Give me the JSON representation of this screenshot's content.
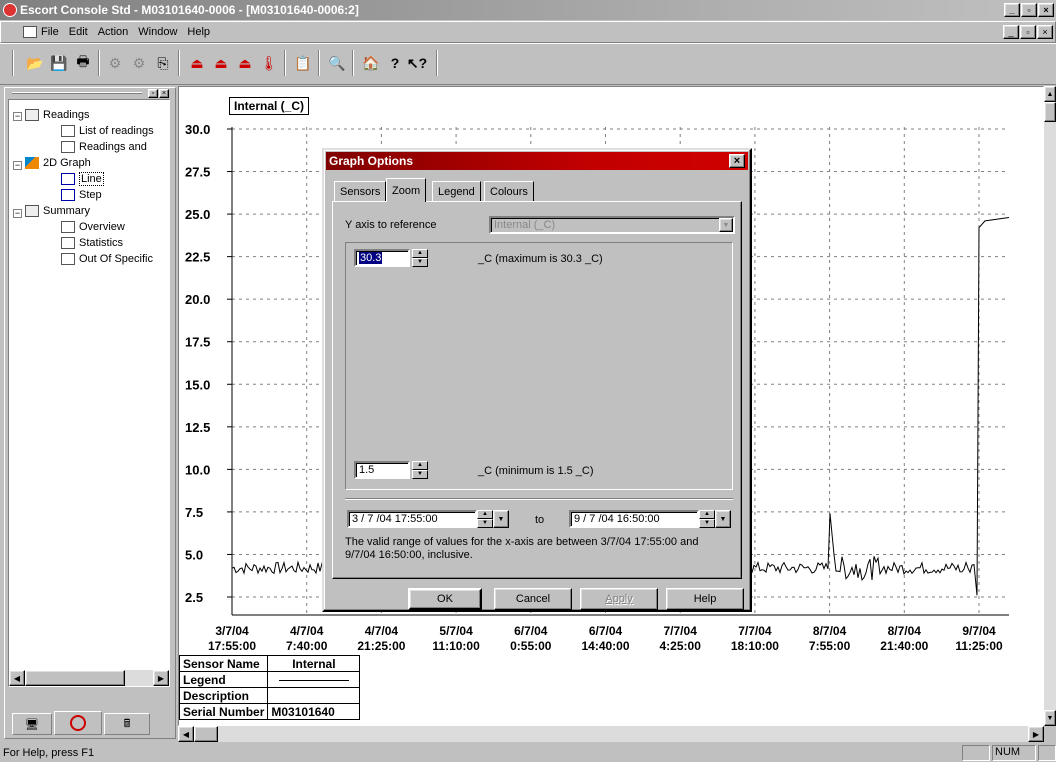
{
  "window": {
    "title": "Escort Console Std - M03101640-0006 - [M03101640-0006:2]"
  },
  "menu": {
    "items": [
      "File",
      "Edit",
      "Action",
      "Window",
      "Help"
    ]
  },
  "tree": {
    "items": [
      {
        "label": "Readings",
        "level": 0
      },
      {
        "label": "List of readings",
        "level": 1
      },
      {
        "label": "Readings and",
        "level": 1
      },
      {
        "label": "2D Graph",
        "level": 0
      },
      {
        "label": "Line",
        "level": 1
      },
      {
        "label": "Step",
        "level": 1
      },
      {
        "label": "Summary",
        "level": 0
      },
      {
        "label": "Overview",
        "level": 1
      },
      {
        "label": "Statistics",
        "level": 1
      },
      {
        "label": "Out Of Specific",
        "level": 1
      }
    ],
    "tabs": [
      "",
      "",
      ""
    ]
  },
  "graph": {
    "series_label": "Internal (_C)"
  },
  "chart_data": {
    "type": "line",
    "title": "Internal (_C)",
    "ylim": [
      1.5,
      30.3
    ],
    "y_ticks": [
      "30.0",
      "27.5",
      "25.0",
      "22.5",
      "20.0",
      "17.5",
      "15.0",
      "12.5",
      "10.0",
      "7.5",
      "5.0",
      "2.5"
    ],
    "x_ticks": [
      {
        "date": "3/7/04",
        "time": "17:55:00"
      },
      {
        "date": "4/7/04",
        "time": "7:40:00"
      },
      {
        "date": "4/7/04",
        "time": "21:25:00"
      },
      {
        "date": "5/7/04",
        "time": "11:10:00"
      },
      {
        "date": "6/7/04",
        "time": "0:55:00"
      },
      {
        "date": "6/7/04",
        "time": "14:40:00"
      },
      {
        "date": "7/7/04",
        "time": "4:25:00"
      },
      {
        "date": "7/7/04",
        "time": "18:10:00"
      },
      {
        "date": "8/7/04",
        "time": "7:55:00"
      },
      {
        "date": "8/7/04",
        "time": "21:40:00"
      },
      {
        "date": "9/7/04",
        "time": "11:25:00"
      }
    ],
    "grid": true,
    "series": [
      {
        "name": "Internal",
        "approx_level": 4.2,
        "final_level": 24.8
      }
    ]
  },
  "info_table": {
    "rows": [
      {
        "label": "Sensor Name",
        "value": "Internal"
      },
      {
        "label": "Legend",
        "value": ""
      },
      {
        "label": "Description",
        "value": ""
      },
      {
        "label": "Serial Number",
        "value": "M03101640"
      }
    ]
  },
  "dialog": {
    "title": "Graph Options",
    "tabs": [
      "Sensors",
      "Zoom",
      "Legend",
      "Colours"
    ],
    "active_tab": "Zoom",
    "y_axis_label": "Y axis to reference",
    "y_axis_value": "Internal (_C)",
    "max_value": "30.3",
    "max_label": "_C (maximum is 30.3 _C)",
    "min_value": "1.5",
    "min_label": "_C (minimum is 1.5 _C)",
    "x_from": "3 / 7 /04 17:55:00",
    "x_to_label": "to",
    "x_to": "9 / 7 /04 16:50:00",
    "range_note": "The valid range of values for the x-axis are between 3/7/04  17:55:00 and 9/7/04  16:50:00, inclusive.",
    "buttons": {
      "ok": "OK",
      "cancel": "Cancel",
      "apply": "Apply",
      "help": "Help"
    }
  },
  "status": {
    "help_text": "For Help, press F1",
    "num": "NUM"
  }
}
